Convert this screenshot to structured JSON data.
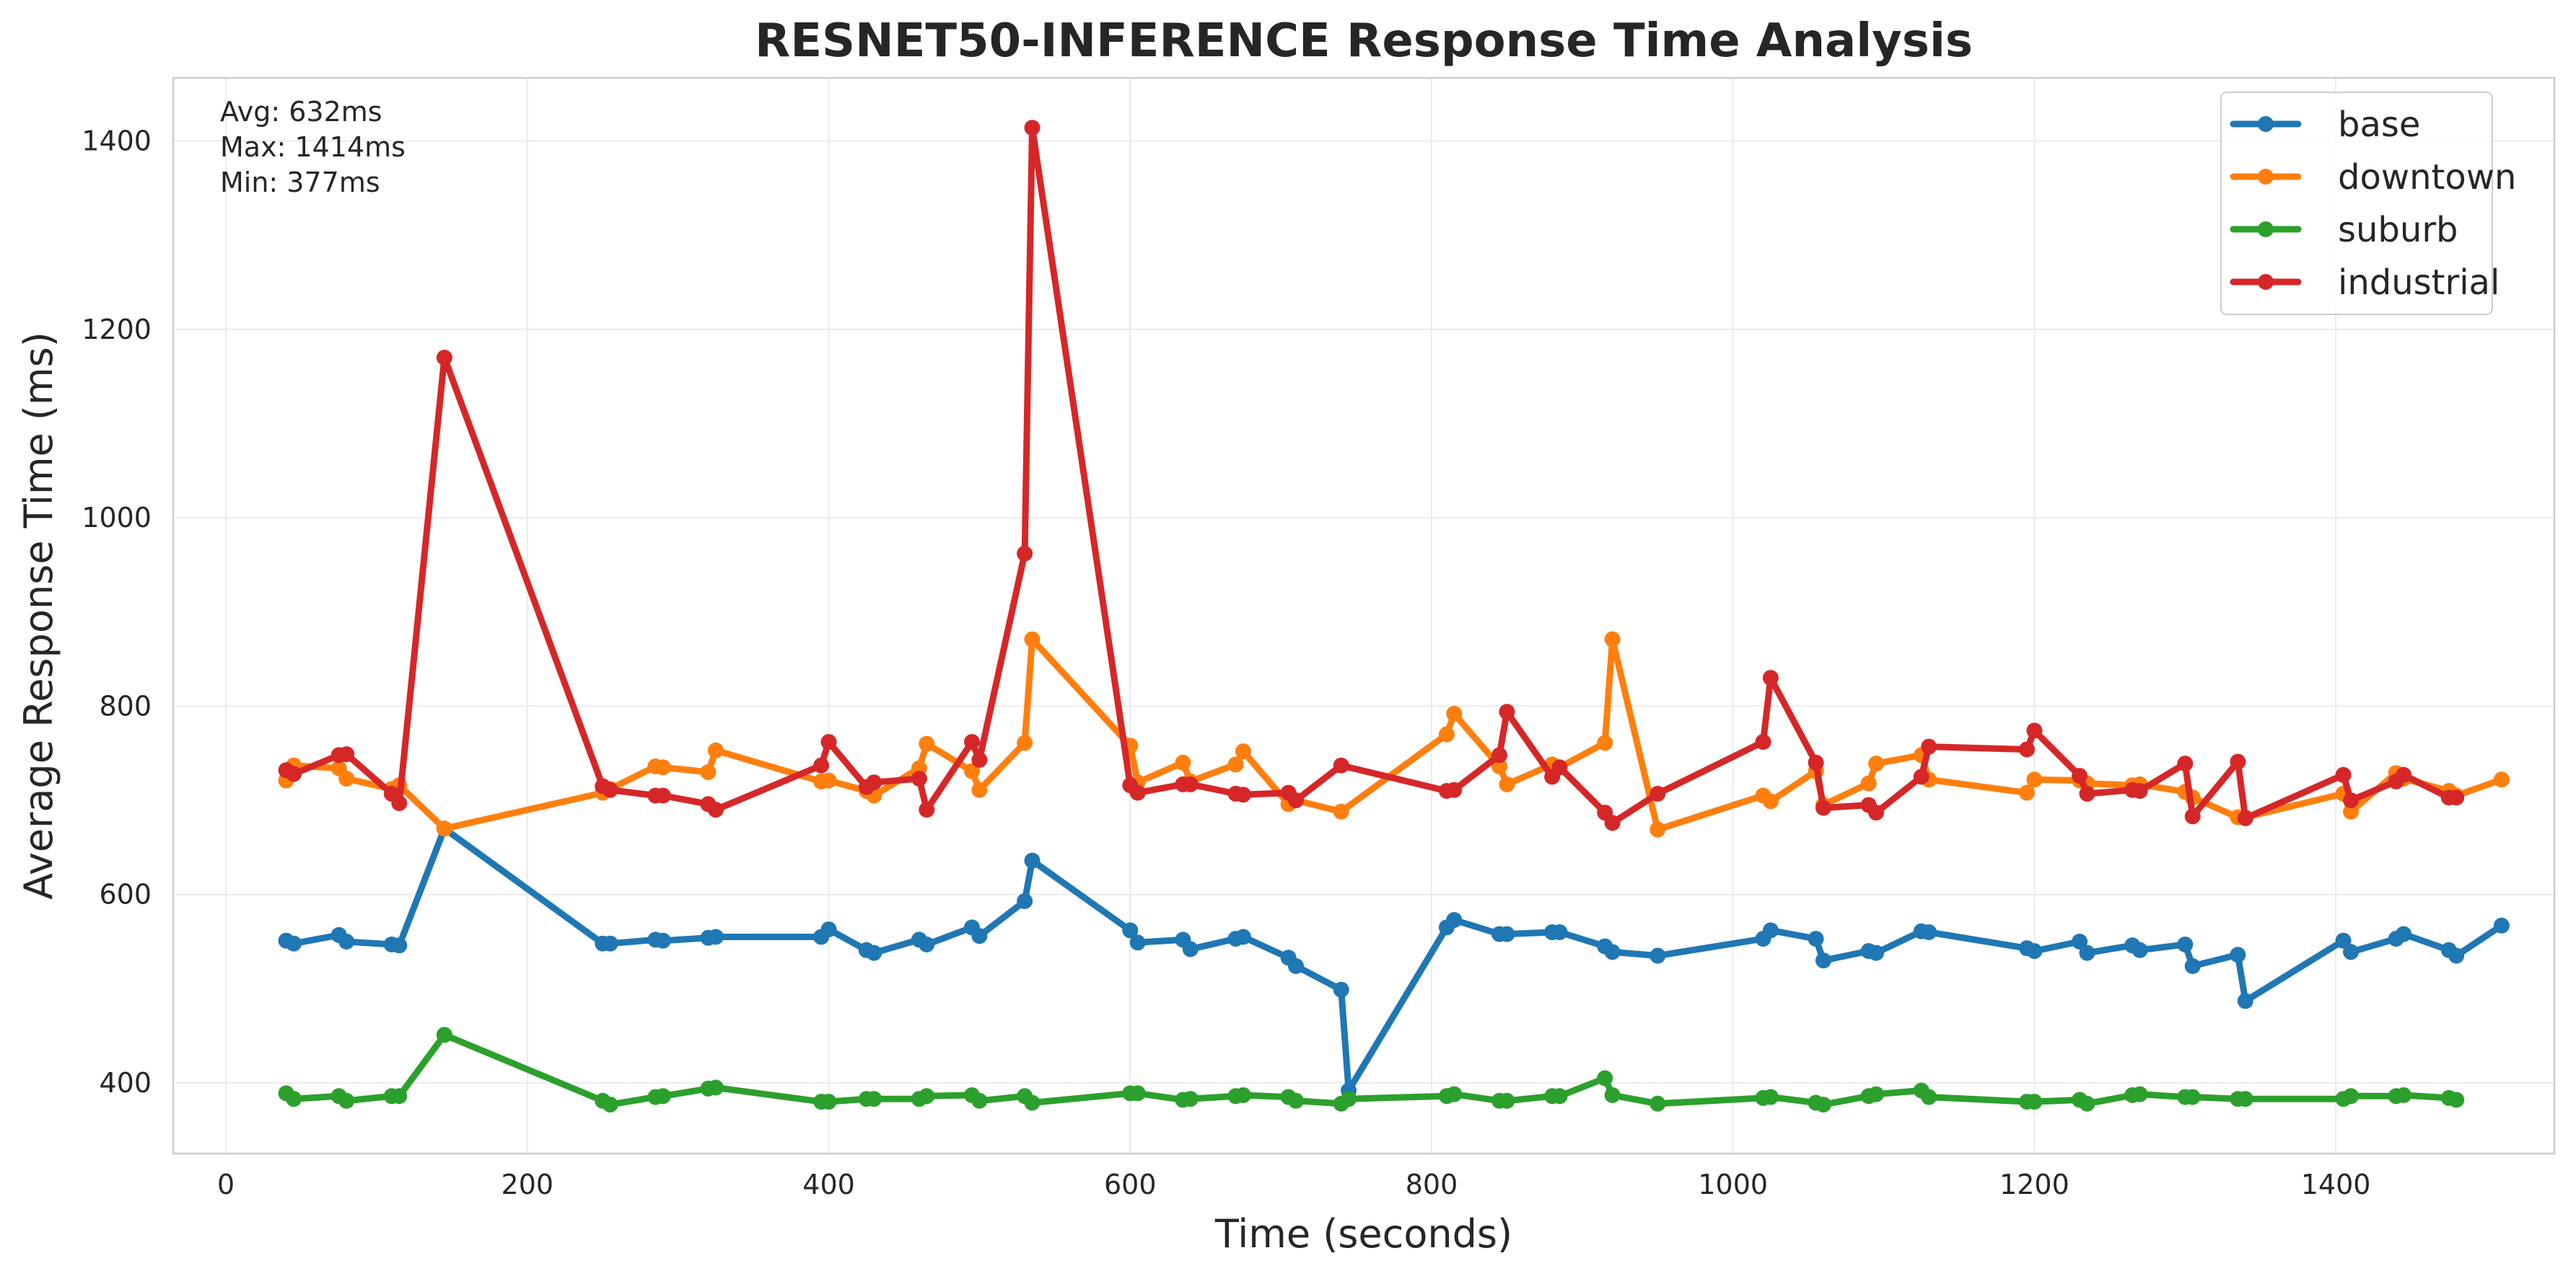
{
  "chart_data": {
    "type": "line",
    "title": "RESNET50-INFERENCE Response Time Analysis",
    "xlabel": "Time (seconds)",
    "ylabel": "Average Response Time (ms)",
    "xlim": [
      -35,
      1545
    ],
    "ylim": [
      325,
      1467
    ],
    "xticks": [
      0,
      200,
      400,
      600,
      800,
      1000,
      1200,
      1400
    ],
    "yticks": [
      400,
      600,
      800,
      1000,
      1200,
      1400
    ],
    "grid": true,
    "legend_position": "top-right",
    "stats": {
      "avg": "Avg: 632ms",
      "max": "Max: 1414ms",
      "min": "Min: 377ms"
    },
    "series": [
      {
        "name": "base",
        "color": "#1f77b4",
        "points": [
          [
            40,
            551
          ],
          [
            45,
            548
          ],
          [
            75,
            557
          ],
          [
            80,
            550
          ],
          [
            110,
            547
          ],
          [
            115,
            546
          ],
          [
            145,
            670
          ],
          [
            250,
            548
          ],
          [
            255,
            548
          ],
          [
            285,
            552
          ],
          [
            290,
            551
          ],
          [
            320,
            554
          ],
          [
            325,
            555
          ],
          [
            395,
            555
          ],
          [
            400,
            563
          ],
          [
            425,
            541
          ],
          [
            430,
            538
          ],
          [
            460,
            552
          ],
          [
            465,
            547
          ],
          [
            495,
            565
          ],
          [
            500,
            556
          ],
          [
            530,
            593
          ],
          [
            535,
            636
          ],
          [
            600,
            562
          ],
          [
            605,
            549
          ],
          [
            635,
            552
          ],
          [
            640,
            542
          ],
          [
            670,
            553
          ],
          [
            675,
            555
          ],
          [
            705,
            533
          ],
          [
            710,
            524
          ],
          [
            740,
            499
          ],
          [
            745,
            392
          ],
          [
            810,
            565
          ],
          [
            815,
            573
          ],
          [
            845,
            558
          ],
          [
            850,
            558
          ],
          [
            880,
            560
          ],
          [
            885,
            560
          ],
          [
            915,
            545
          ],
          [
            920,
            539
          ],
          [
            950,
            535
          ],
          [
            1020,
            553
          ],
          [
            1025,
            562
          ],
          [
            1055,
            553
          ],
          [
            1060,
            530
          ],
          [
            1090,
            540
          ],
          [
            1095,
            538
          ],
          [
            1125,
            561
          ],
          [
            1130,
            560
          ],
          [
            1195,
            543
          ],
          [
            1200,
            540
          ],
          [
            1230,
            550
          ],
          [
            1235,
            538
          ],
          [
            1265,
            546
          ],
          [
            1270,
            541
          ],
          [
            1300,
            547
          ],
          [
            1305,
            524
          ],
          [
            1335,
            536
          ],
          [
            1340,
            487
          ],
          [
            1405,
            551
          ],
          [
            1410,
            539
          ],
          [
            1440,
            553
          ],
          [
            1445,
            558
          ],
          [
            1475,
            541
          ],
          [
            1480,
            535
          ],
          [
            1510,
            567
          ]
        ]
      },
      {
        "name": "downtown",
        "color": "#ff7f0e",
        "points": [
          [
            40,
            721
          ],
          [
            45,
            737
          ],
          [
            75,
            734
          ],
          [
            80,
            723
          ],
          [
            110,
            712
          ],
          [
            115,
            716
          ],
          [
            145,
            670
          ],
          [
            250,
            708
          ],
          [
            255,
            712
          ],
          [
            285,
            736
          ],
          [
            290,
            735
          ],
          [
            320,
            730
          ],
          [
            325,
            753
          ],
          [
            395,
            720
          ],
          [
            400,
            721
          ],
          [
            425,
            710
          ],
          [
            430,
            705
          ],
          [
            460,
            734
          ],
          [
            465,
            760
          ],
          [
            495,
            731
          ],
          [
            500,
            711
          ],
          [
            530,
            761
          ],
          [
            535,
            871
          ],
          [
            600,
            758
          ],
          [
            605,
            719
          ],
          [
            635,
            740
          ],
          [
            640,
            720
          ],
          [
            670,
            738
          ],
          [
            675,
            752
          ],
          [
            705,
            696
          ],
          [
            710,
            700
          ],
          [
            740,
            688
          ],
          [
            810,
            770
          ],
          [
            815,
            792
          ],
          [
            845,
            736
          ],
          [
            850,
            717
          ],
          [
            880,
            738
          ],
          [
            885,
            735
          ],
          [
            915,
            761
          ],
          [
            920,
            871
          ],
          [
            950,
            669
          ],
          [
            1020,
            705
          ],
          [
            1025,
            699
          ],
          [
            1055,
            731
          ],
          [
            1060,
            695
          ],
          [
            1090,
            718
          ],
          [
            1095,
            739
          ],
          [
            1125,
            748
          ],
          [
            1130,
            722
          ],
          [
            1195,
            708
          ],
          [
            1200,
            722
          ],
          [
            1230,
            721
          ],
          [
            1235,
            718
          ],
          [
            1265,
            716
          ],
          [
            1270,
            717
          ],
          [
            1300,
            709
          ],
          [
            1305,
            703
          ],
          [
            1335,
            682
          ],
          [
            1340,
            682
          ],
          [
            1405,
            707
          ],
          [
            1410,
            688
          ],
          [
            1440,
            729
          ],
          [
            1445,
            723
          ],
          [
            1475,
            710
          ],
          [
            1480,
            705
          ],
          [
            1510,
            722
          ]
        ]
      },
      {
        "name": "suburb",
        "color": "#2ca02c",
        "points": [
          [
            40,
            389
          ],
          [
            45,
            383
          ],
          [
            75,
            386
          ],
          [
            80,
            381
          ],
          [
            110,
            386
          ],
          [
            115,
            386
          ],
          [
            145,
            451
          ],
          [
            250,
            381
          ],
          [
            255,
            377
          ],
          [
            285,
            385
          ],
          [
            290,
            386
          ],
          [
            320,
            394
          ],
          [
            325,
            395
          ],
          [
            395,
            380
          ],
          [
            400,
            380
          ],
          [
            425,
            383
          ],
          [
            430,
            383
          ],
          [
            460,
            383
          ],
          [
            465,
            386
          ],
          [
            495,
            387
          ],
          [
            500,
            381
          ],
          [
            530,
            386
          ],
          [
            535,
            379
          ],
          [
            600,
            389
          ],
          [
            605,
            389
          ],
          [
            635,
            382
          ],
          [
            640,
            383
          ],
          [
            670,
            386
          ],
          [
            675,
            387
          ],
          [
            705,
            385
          ],
          [
            710,
            381
          ],
          [
            740,
            378
          ],
          [
            745,
            383
          ],
          [
            810,
            386
          ],
          [
            815,
            388
          ],
          [
            845,
            381
          ],
          [
            850,
            381
          ],
          [
            880,
            386
          ],
          [
            885,
            386
          ],
          [
            915,
            405
          ],
          [
            920,
            387
          ],
          [
            950,
            378
          ],
          [
            1020,
            384
          ],
          [
            1025,
            385
          ],
          [
            1055,
            379
          ],
          [
            1060,
            377
          ],
          [
            1090,
            386
          ],
          [
            1095,
            388
          ],
          [
            1125,
            392
          ],
          [
            1130,
            385
          ],
          [
            1195,
            380
          ],
          [
            1200,
            380
          ],
          [
            1230,
            382
          ],
          [
            1235,
            378
          ],
          [
            1265,
            387
          ],
          [
            1270,
            388
          ],
          [
            1300,
            385
          ],
          [
            1305,
            385
          ],
          [
            1335,
            383
          ],
          [
            1340,
            383
          ],
          [
            1405,
            383
          ],
          [
            1410,
            386
          ],
          [
            1440,
            386
          ],
          [
            1445,
            387
          ],
          [
            1475,
            384
          ],
          [
            1480,
            382
          ]
        ]
      },
      {
        "name": "industrial",
        "color": "#d62728",
        "points": [
          [
            40,
            732
          ],
          [
            45,
            728
          ],
          [
            75,
            748
          ],
          [
            80,
            749
          ],
          [
            110,
            707
          ],
          [
            115,
            697
          ],
          [
            145,
            1170
          ],
          [
            250,
            715
          ],
          [
            255,
            711
          ],
          [
            285,
            705
          ],
          [
            290,
            705
          ],
          [
            320,
            696
          ],
          [
            325,
            690
          ],
          [
            395,
            737
          ],
          [
            400,
            762
          ],
          [
            425,
            714
          ],
          [
            430,
            719
          ],
          [
            460,
            723
          ],
          [
            465,
            690
          ],
          [
            495,
            762
          ],
          [
            500,
            743
          ],
          [
            530,
            962
          ],
          [
            535,
            1414
          ],
          [
            600,
            716
          ],
          [
            605,
            708
          ],
          [
            635,
            717
          ],
          [
            640,
            717
          ],
          [
            670,
            707
          ],
          [
            675,
            706
          ],
          [
            705,
            708
          ],
          [
            710,
            700
          ],
          [
            740,
            737
          ],
          [
            810,
            710
          ],
          [
            815,
            711
          ],
          [
            845,
            748
          ],
          [
            850,
            794
          ],
          [
            880,
            725
          ],
          [
            885,
            735
          ],
          [
            915,
            687
          ],
          [
            920,
            676
          ],
          [
            950,
            707
          ],
          [
            1020,
            762
          ],
          [
            1025,
            830
          ],
          [
            1055,
            740
          ],
          [
            1060,
            692
          ],
          [
            1090,
            695
          ],
          [
            1095,
            687
          ],
          [
            1125,
            725
          ],
          [
            1130,
            757
          ],
          [
            1195,
            754
          ],
          [
            1200,
            774
          ],
          [
            1230,
            726
          ],
          [
            1235,
            707
          ],
          [
            1265,
            711
          ],
          [
            1270,
            710
          ],
          [
            1300,
            739
          ],
          [
            1305,
            683
          ],
          [
            1335,
            741
          ],
          [
            1340,
            681
          ],
          [
            1405,
            727
          ],
          [
            1410,
            700
          ],
          [
            1440,
            720
          ],
          [
            1445,
            727
          ],
          [
            1475,
            703
          ],
          [
            1480,
            703
          ]
        ]
      }
    ]
  }
}
